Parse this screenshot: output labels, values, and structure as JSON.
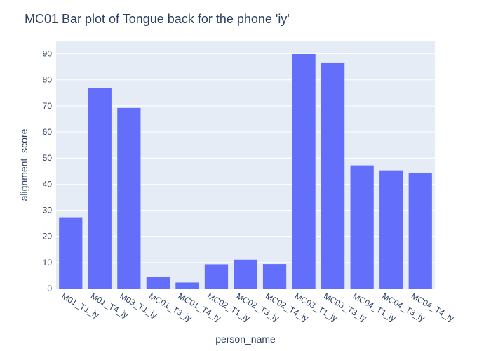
{
  "chart_data": {
    "type": "bar",
    "title": "MC01 Bar plot of Tongue back for the phone 'iy'",
    "xlabel": "person_name",
    "ylabel": "alignment_score",
    "ylim": [
      0,
      95
    ],
    "yticks": [
      0,
      10,
      20,
      30,
      40,
      50,
      60,
      70,
      80,
      90
    ],
    "grid": true,
    "legend": "none",
    "bar_color": "#636efa",
    "plot_bg": "#e5ecf6",
    "categories": [
      "M01_T1_iy",
      "M01_T4_iy",
      "M03_T1_iy",
      "MC01_T3_iy",
      "MC01_T4_iy",
      "MC02_T1_iy",
      "MC02_T3_iy",
      "MC02_T4_iy",
      "MC03_T1_iy",
      "MC03_T3_iy",
      "MC04_T1_iy",
      "MC04_T3_iy",
      "MC04_T4_iy"
    ],
    "values": [
      27.3,
      76.8,
      69.2,
      4.4,
      2.3,
      9.3,
      11.1,
      9.4,
      89.9,
      86.4,
      47.2,
      45.3,
      44.4
    ]
  }
}
